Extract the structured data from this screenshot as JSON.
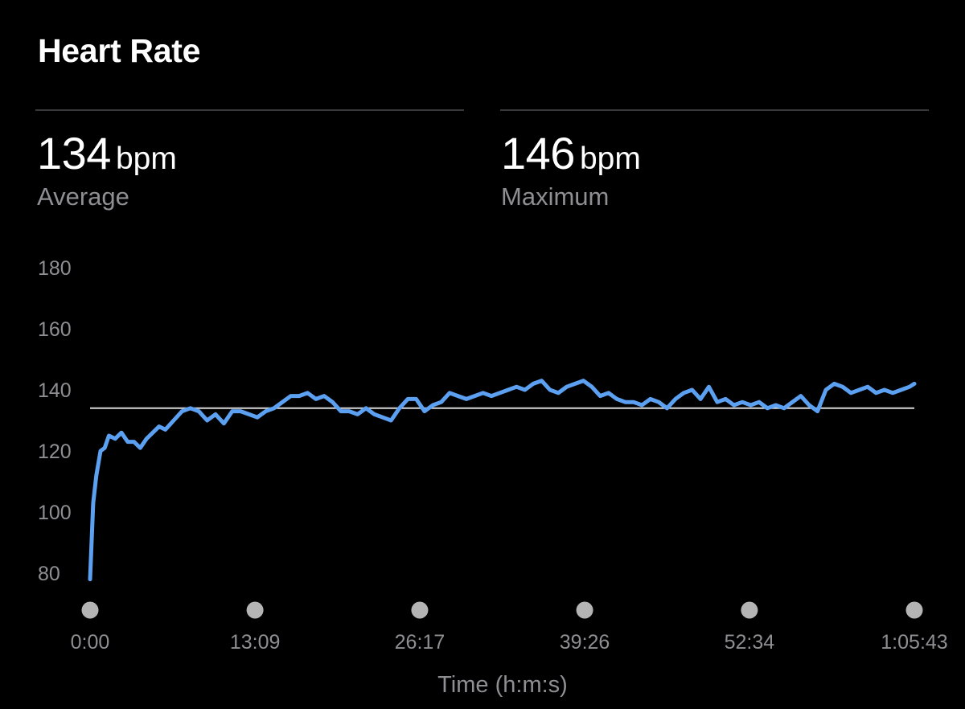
{
  "header": {
    "title": "Heart Rate"
  },
  "stats": [
    {
      "value": "134",
      "unit": "bpm",
      "label": "Average"
    },
    {
      "value": "146",
      "unit": "bpm",
      "label": "Maximum"
    }
  ],
  "chart_data": {
    "type": "line",
    "title": "Heart Rate",
    "xlabel": "Time (h:m:s)",
    "ylabel": "",
    "ylim": [
      75,
      180
    ],
    "xlim_seconds": [
      0,
      3943
    ],
    "y_ticks": [
      180,
      160,
      140,
      120,
      100,
      80
    ],
    "x_ticks": [
      "0:00",
      "13:09",
      "26:17",
      "39:26",
      "52:34",
      "1:05:43"
    ],
    "x_tick_seconds": [
      0,
      789,
      1577,
      2366,
      3154,
      3943
    ],
    "average_line": 134,
    "colors": {
      "line": "#5ca0f2",
      "average_line": "#d8d8d8",
      "tick_dot": "#b4b4b4",
      "tick_label": "#8e8e93"
    },
    "grid": false,
    "series": [
      {
        "x_seconds": [
          0,
          15,
          30,
          50,
          70,
          90,
          120,
          150,
          180,
          210,
          240,
          270,
          300,
          330,
          360,
          400,
          440,
          480,
          520,
          560,
          600,
          640,
          680,
          720,
          760,
          800,
          840,
          880,
          920,
          960,
          1000,
          1040,
          1080,
          1120,
          1160,
          1200,
          1240,
          1280,
          1320,
          1360,
          1400,
          1440,
          1480,
          1520,
          1560,
          1600,
          1640,
          1680,
          1720,
          1760,
          1800,
          1840,
          1880,
          1920,
          1960,
          2000,
          2040,
          2080,
          2120,
          2160,
          2200,
          2240,
          2280,
          2320,
          2360,
          2400,
          2440,
          2480,
          2520,
          2560,
          2600,
          2640,
          2680,
          2720,
          2760,
          2800,
          2840,
          2880,
          2920,
          2960,
          3000,
          3040,
          3080,
          3120,
          3160,
          3200,
          3240,
          3280,
          3320,
          3360,
          3400,
          3440,
          3480,
          3520,
          3560,
          3600,
          3640,
          3680,
          3720,
          3760,
          3800,
          3840,
          3880,
          3920,
          3943
        ],
        "bpm": [
          78,
          103,
          112,
          120,
          121,
          125,
          124,
          126,
          123,
          123,
          121,
          124,
          126,
          128,
          127,
          130,
          133,
          134,
          133,
          130,
          132,
          129,
          133,
          133,
          132,
          131,
          133,
          134,
          136,
          138,
          138,
          139,
          137,
          138,
          136,
          133,
          133,
          132,
          134,
          132,
          131,
          130,
          134,
          137,
          137,
          133,
          135,
          136,
          139,
          138,
          137,
          138,
          139,
          138,
          139,
          140,
          141,
          140,
          142,
          143,
          140,
          139,
          141,
          142,
          143,
          141,
          138,
          139,
          137,
          136,
          136,
          135,
          137,
          136,
          134,
          137,
          139,
          140,
          137,
          141,
          136,
          137,
          135,
          136,
          135,
          136,
          134,
          135,
          134,
          136,
          138,
          135,
          133,
          140,
          142,
          141,
          139,
          140,
          141,
          139,
          140,
          139,
          140,
          141,
          142
        ]
      }
    ]
  }
}
